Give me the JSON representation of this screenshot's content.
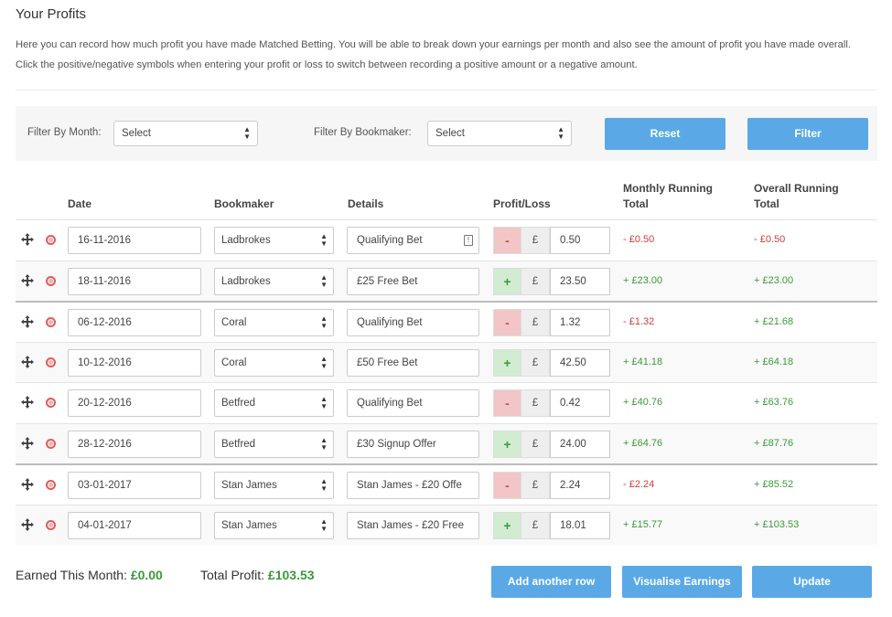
{
  "title": "Your Profits",
  "description": "Here you can record how much profit you have made Matched Betting. You will be able to break down your earnings per month and also see the amount of profit you have made overall. Click the positive/negative symbols when entering your profit or loss to switch between recording a positive amount or a negative amount.",
  "filters": {
    "month_label": "Filter By Month:",
    "month_value": "Select",
    "bookmaker_label": "Filter By Bookmaker:",
    "bookmaker_value": "Select",
    "reset_label": "Reset",
    "filter_label": "Filter"
  },
  "table": {
    "headers": {
      "date": "Date",
      "bookmaker": "Bookmaker",
      "details": "Details",
      "profit_loss": "Profit/Loss",
      "monthly_line1": "Monthly Running",
      "monthly_line2": "Total",
      "overall_line1": "Overall Running",
      "overall_line2": "Total"
    },
    "currency_symbol": "£",
    "rows": [
      {
        "date": "16-11-2016",
        "bookmaker": "Ladbrokes",
        "details": "Qualifying Bet",
        "sign": "-",
        "amount": "0.50",
        "monthly": "- £0.50",
        "overall": "- £0.50"
      },
      {
        "date": "18-11-2016",
        "bookmaker": "Ladbrokes",
        "details": "£25 Free Bet",
        "sign": "+",
        "amount": "23.50",
        "monthly": "+ £23.00",
        "overall": "+ £23.00"
      },
      {
        "date": "06-12-2016",
        "bookmaker": "Coral",
        "details": "Qualifying Bet",
        "sign": "-",
        "amount": "1.32",
        "monthly": "- £1.32",
        "overall": "+ £21.68"
      },
      {
        "date": "10-12-2016",
        "bookmaker": "Coral",
        "details": "£50 Free Bet",
        "sign": "+",
        "amount": "42.50",
        "monthly": "+ £41.18",
        "overall": "+ £64.18"
      },
      {
        "date": "20-12-2016",
        "bookmaker": "Betfred",
        "details": "Qualifying Bet",
        "sign": "-",
        "amount": "0.42",
        "monthly": "+ £40.76",
        "overall": "+ £63.76"
      },
      {
        "date": "28-12-2016",
        "bookmaker": "Betfred",
        "details": "£30 Signup Offer",
        "sign": "+",
        "amount": "24.00",
        "monthly": "+ £64.76",
        "overall": "+ £87.76"
      },
      {
        "date": "03-01-2017",
        "bookmaker": "Stan James",
        "details": "Stan James - £20 Offe",
        "sign": "-",
        "amount": "2.24",
        "monthly": "- £2.24",
        "overall": "+ £85.52"
      },
      {
        "date": "04-01-2017",
        "bookmaker": "Stan James",
        "details": "Stan James - £20 Free",
        "sign": "+",
        "amount": "18.01",
        "monthly": "+ £15.77",
        "overall": "+ £103.53"
      }
    ]
  },
  "summary": {
    "earned_label": "Earned This Month:",
    "earned_value": "£0.00",
    "total_label": "Total Profit:",
    "total_value": "£103.53"
  },
  "actions": {
    "add_row_label": "Add another row",
    "visualise_label": "Visualise Earnings",
    "update_label": "Update"
  },
  "colors": {
    "primary_button": "#5aa9e6",
    "positive": "#3a9a3a",
    "negative": "#d43c3c"
  },
  "icons": {
    "move": "move-icon",
    "delete": "delete-icon",
    "select_arrows": "select-arrows-icon",
    "info": "info-icon"
  }
}
